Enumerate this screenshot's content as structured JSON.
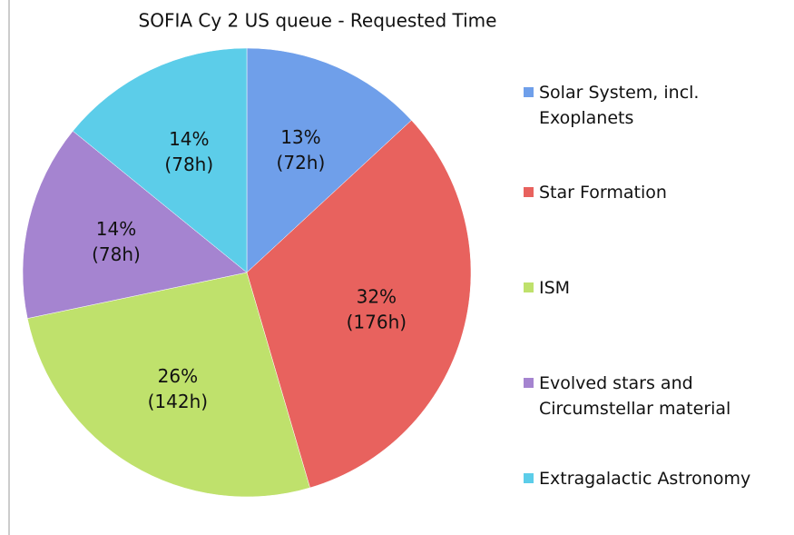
{
  "chart_data": {
    "type": "pie",
    "title": "SOFIA Cy 2 US queue - Requested Time",
    "categories": [
      "Solar System, incl.\nExoplanets",
      "Star Formation",
      "ISM",
      "Evolved stars and\nCircumstellar material",
      "Extragalactic Astronomy"
    ],
    "values": [
      13,
      32,
      26,
      14,
      14
    ],
    "value_labels": [
      [
        "13%",
        "(72h)"
      ],
      [
        "32%",
        "(176h)"
      ],
      [
        "26%",
        "(142h)"
      ],
      [
        "14%",
        "(78h)"
      ],
      [
        "14%",
        "(78h)"
      ]
    ],
    "colors": [
      "#6f9fea",
      "#e8625e",
      "#bfe16c",
      "#a584d0",
      "#5ccde9"
    ],
    "legend": "right"
  }
}
